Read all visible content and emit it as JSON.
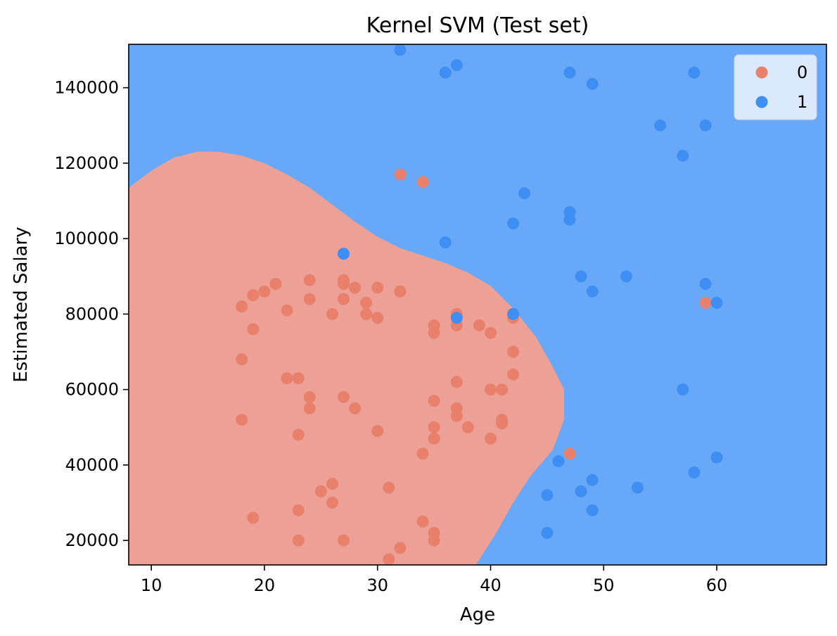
{
  "chart_data": {
    "type": "scatter",
    "title": "Kernel SVM (Test set)",
    "xlabel": "Age",
    "ylabel": "Estimated Salary",
    "xlim": [
      8,
      69.7
    ],
    "ylim": [
      13500,
      151500
    ],
    "xticks": [
      10,
      20,
      30,
      40,
      50,
      60
    ],
    "yticks": [
      20000,
      40000,
      60000,
      80000,
      100000,
      120000,
      140000
    ],
    "xtick_labels": [
      "10",
      "20",
      "30",
      "40",
      "50",
      "60"
    ],
    "ytick_labels": [
      "20000",
      "40000",
      "60000",
      "80000",
      "100000",
      "120000",
      "140000"
    ],
    "grid": false,
    "legend_position": "top-right",
    "background_region_color": "#67a9f8",
    "decision_region_color": "#eca096",
    "decision_region_label": "0",
    "decision_region_boundary": [
      [
        8,
        113500
      ],
      [
        10,
        118000
      ],
      [
        12,
        121500
      ],
      [
        14,
        123000
      ],
      [
        16,
        123000
      ],
      [
        18,
        122000
      ],
      [
        20,
        120000
      ],
      [
        22,
        117000
      ],
      [
        24,
        113500
      ],
      [
        26,
        109000
      ],
      [
        28,
        104500
      ],
      [
        30,
        100500
      ],
      [
        32,
        97500
      ],
      [
        34,
        95500
      ],
      [
        36,
        93500
      ],
      [
        38,
        91000
      ],
      [
        40,
        87500
      ],
      [
        42,
        81500
      ],
      [
        44,
        74000
      ],
      [
        45.5,
        66000
      ],
      [
        46.5,
        60000
      ],
      [
        46.5,
        52000
      ],
      [
        45.5,
        44000
      ],
      [
        43.5,
        37000
      ],
      [
        42,
        30000
      ],
      [
        40.5,
        22000
      ],
      [
        38.7,
        13500
      ],
      [
        8,
        13500
      ]
    ],
    "series": [
      {
        "name": "0",
        "color": "#e8806c",
        "points": [
          [
            32,
            117000
          ],
          [
            34,
            115000
          ],
          [
            27,
            89000
          ],
          [
            24,
            89000
          ],
          [
            21,
            88000
          ],
          [
            19,
            85000
          ],
          [
            20,
            86000
          ],
          [
            28,
            87000
          ],
          [
            27,
            88000
          ],
          [
            30,
            87000
          ],
          [
            32,
            86000
          ],
          [
            18,
            82000
          ],
          [
            22,
            81000
          ],
          [
            24,
            84000
          ],
          [
            27,
            84000
          ],
          [
            29,
            83000
          ],
          [
            26,
            80000
          ],
          [
            29,
            80000
          ],
          [
            30,
            79000
          ],
          [
            19,
            76000
          ],
          [
            35,
            77000
          ],
          [
            35,
            75000
          ],
          [
            37,
            80000
          ],
          [
            37,
            77000
          ],
          [
            39,
            77000
          ],
          [
            40,
            75000
          ],
          [
            42,
            79000
          ],
          [
            42,
            70000
          ],
          [
            18,
            68000
          ],
          [
            42,
            64000
          ],
          [
            22,
            63000
          ],
          [
            23,
            63000
          ],
          [
            37,
            62000
          ],
          [
            40,
            60000
          ],
          [
            41,
            60000
          ],
          [
            24,
            58000
          ],
          [
            27,
            58000
          ],
          [
            35,
            57000
          ],
          [
            24,
            55000
          ],
          [
            28,
            55000
          ],
          [
            37,
            55000
          ],
          [
            37,
            53000
          ],
          [
            18,
            52000
          ],
          [
            41,
            52000
          ],
          [
            41,
            51000
          ],
          [
            35,
            50000
          ],
          [
            38,
            50000
          ],
          [
            30,
            49000
          ],
          [
            23,
            48000
          ],
          [
            35,
            47000
          ],
          [
            40,
            47000
          ],
          [
            34,
            43000
          ],
          [
            47,
            43000
          ],
          [
            26,
            35000
          ],
          [
            25,
            33000
          ],
          [
            31,
            34000
          ],
          [
            26,
            30000
          ],
          [
            23,
            28000
          ],
          [
            19,
            26000
          ],
          [
            34,
            25000
          ],
          [
            35,
            22000
          ],
          [
            35,
            20000
          ],
          [
            23,
            20000
          ],
          [
            27,
            20000
          ],
          [
            32,
            18000
          ],
          [
            31,
            15000
          ],
          [
            59,
            83000
          ]
        ]
      },
      {
        "name": "1",
        "color": "#3f8ef3",
        "points": [
          [
            32,
            150000
          ],
          [
            36,
            144000
          ],
          [
            37,
            146000
          ],
          [
            47,
            144000
          ],
          [
            58,
            144000
          ],
          [
            49,
            141000
          ],
          [
            55,
            130000
          ],
          [
            59,
            130000
          ],
          [
            57,
            122000
          ],
          [
            43,
            112000
          ],
          [
            47,
            107000
          ],
          [
            47,
            105000
          ],
          [
            42,
            104000
          ],
          [
            36,
            99000
          ],
          [
            27,
            96000
          ],
          [
            48,
            90000
          ],
          [
            52,
            90000
          ],
          [
            59,
            88000
          ],
          [
            49,
            86000
          ],
          [
            60,
            83000
          ],
          [
            37,
            79000
          ],
          [
            42,
            80000
          ],
          [
            57,
            60000
          ],
          [
            60,
            42000
          ],
          [
            46,
            41000
          ],
          [
            58,
            38000
          ],
          [
            49,
            36000
          ],
          [
            53,
            34000
          ],
          [
            48,
            33000
          ],
          [
            45,
            32000
          ],
          [
            49,
            28000
          ],
          [
            45,
            22000
          ]
        ]
      }
    ]
  }
}
